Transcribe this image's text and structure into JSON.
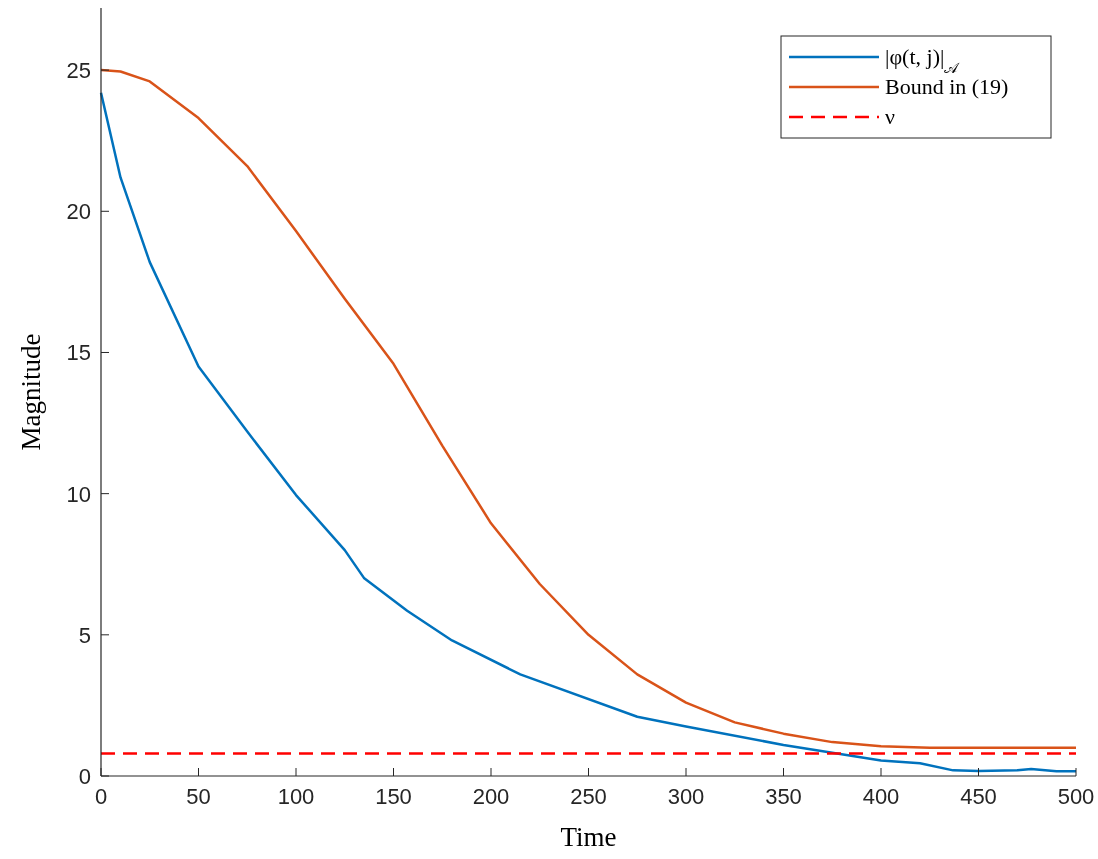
{
  "chart_data": {
    "type": "line",
    "xlabel": "Time",
    "ylabel": "Magnitude",
    "xlim": [
      0,
      500
    ],
    "ylim": [
      0,
      27.2
    ],
    "xticks": [
      0,
      50,
      100,
      150,
      200,
      250,
      300,
      350,
      400,
      450,
      500
    ],
    "yticks": [
      0,
      5,
      10,
      15,
      20,
      25
    ],
    "legend": "top right",
    "grid": false,
    "line_style": "solid",
    "marker": "none",
    "series": [
      {
        "name": "|φ(t, j)|$_{𝒜}$",
        "color": "#0072bd",
        "x": [
          0,
          10,
          25,
          50,
          75,
          100,
          125,
          135,
          157,
          180,
          215,
          275,
          300,
          350,
          400,
          420,
          437,
          450,
          470,
          477,
          490,
          500
        ],
        "values": [
          24.2,
          21.2,
          18.2,
          14.5,
          12.2,
          9.95,
          8.0,
          7.0,
          5.85,
          4.8,
          3.6,
          2.1,
          1.75,
          1.1,
          0.55,
          0.45,
          0.2,
          0.18,
          0.2,
          0.25,
          0.17,
          0.17
        ]
      },
      {
        "name": "Bound in (19)",
        "color": "#d95319",
        "x": [
          0,
          10,
          25,
          50,
          75,
          100,
          125,
          150,
          175,
          200,
          225,
          250,
          275,
          300,
          325,
          350,
          375,
          400,
          425,
          500
        ],
        "values": [
          25,
          24.95,
          24.6,
          23.3,
          21.6,
          19.3,
          16.9,
          14.6,
          11.7,
          8.95,
          6.8,
          5.0,
          3.6,
          2.6,
          1.9,
          1.5,
          1.2,
          1.05,
          1.0,
          1.0
        ]
      },
      {
        "name": "ν",
        "color": "#ff0000",
        "line_style": "dashed",
        "x": [
          0,
          500
        ],
        "values": [
          0.8,
          0.8
        ]
      }
    ]
  }
}
